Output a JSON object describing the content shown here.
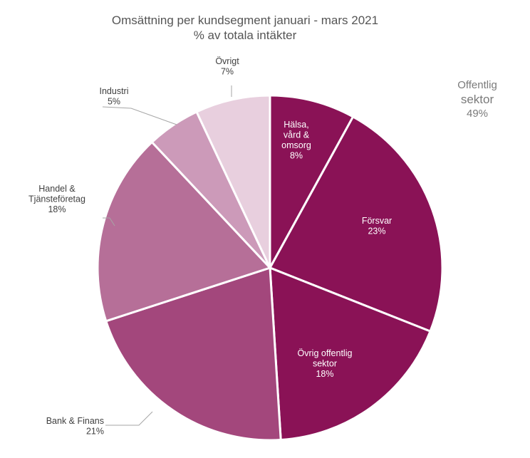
{
  "chart_data": {
    "type": "pie",
    "title": "Omsättning per kundsegment januari - mars 2021",
    "subtitle": "% av totala intäkter",
    "start_angle_deg": 0,
    "direction": "clockwise",
    "slices": [
      {
        "label_lines": [
          "Hälsa,",
          "vård &",
          "omsorg"
        ],
        "value_text": "8%",
        "value": 8,
        "color": "#8A1256",
        "label_color": "#ffffff"
      },
      {
        "label_lines": [
          "Försvar"
        ],
        "value_text": "23%",
        "value": 23,
        "color": "#8A1256",
        "label_color": "#ffffff"
      },
      {
        "label_lines": [
          "Övrig offentlig",
          "sektor"
        ],
        "value_text": "18%",
        "value": 18,
        "color": "#8A1256",
        "label_color": "#ffffff"
      },
      {
        "label_lines": [
          "Bank & Finans"
        ],
        "value_text": "21%",
        "value": 21,
        "color": "#A3477C",
        "label_color": "#404040"
      },
      {
        "label_lines": [
          "Handel &",
          "Tjänsteföretag"
        ],
        "value_text": "18%",
        "value": 18,
        "color": "#B66F98",
        "label_color": "#404040"
      },
      {
        "label_lines": [
          "Industri"
        ],
        "value_text": "5%",
        "value": 5,
        "color": "#CC9AB9",
        "label_color": "#404040"
      },
      {
        "label_lines": [
          "Övrigt"
        ],
        "value_text": "7%",
        "value": 7,
        "color": "#E8CFDE",
        "label_color": "#404040"
      }
    ],
    "group_label": {
      "line1": "Offentlig",
      "line2": "sektor",
      "value_text": "49%"
    }
  }
}
